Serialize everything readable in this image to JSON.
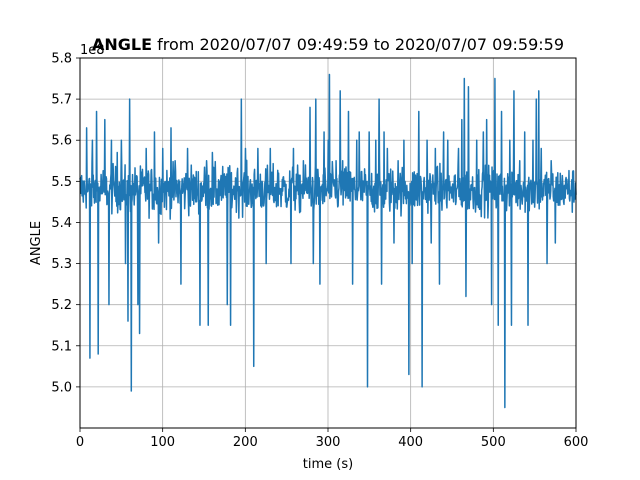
{
  "chart_data": {
    "type": "line",
    "title_bold": "ANGLE",
    "title_rest": " from 2020/07/07 09:49:59 to 2020/07/07 09:59:59",
    "xlabel": "time (s)",
    "ylabel": "ANGLE",
    "y_offset_label": "1e8",
    "xlim": [
      0,
      600
    ],
    "ylim": [
      4.9,
      5.8
    ],
    "x_ticks": [
      0,
      100,
      200,
      300,
      400,
      500,
      600
    ],
    "x_tick_labels": [
      "0",
      "100",
      "200",
      "300",
      "400",
      "500",
      "600"
    ],
    "y_ticks": [
      5.0,
      5.1,
      5.2,
      5.3,
      5.4,
      5.5,
      5.6,
      5.7,
      5.8
    ],
    "y_tick_labels": [
      "5.0",
      "5.1",
      "5.2",
      "5.3",
      "5.4",
      "5.5",
      "5.6",
      "5.7",
      "5.8"
    ],
    "grid": true,
    "series": [
      {
        "color": "#1f77b4",
        "baseline": 5.48,
        "noise": 0.055,
        "n_points": 1200,
        "spikes": [
          [
            8,
            5.63
          ],
          [
            12,
            5.07
          ],
          [
            15,
            5.6
          ],
          [
            20,
            5.67
          ],
          [
            22,
            5.08
          ],
          [
            30,
            5.65
          ],
          [
            35,
            5.2
          ],
          [
            38,
            5.6
          ],
          [
            45,
            5.57
          ],
          [
            50,
            5.6
          ],
          [
            55,
            5.3
          ],
          [
            58,
            5.16
          ],
          [
            60,
            5.7
          ],
          [
            62,
            4.99
          ],
          [
            70,
            5.2
          ],
          [
            72,
            5.13
          ],
          [
            80,
            5.58
          ],
          [
            90,
            5.62
          ],
          [
            95,
            5.35
          ],
          [
            100,
            5.58
          ],
          [
            110,
            5.63
          ],
          [
            115,
            5.55
          ],
          [
            122,
            5.25
          ],
          [
            130,
            5.58
          ],
          [
            140,
            5.45
          ],
          [
            145,
            5.15
          ],
          [
            150,
            5.5
          ],
          [
            153,
            5.55
          ],
          [
            155,
            5.15
          ],
          [
            160,
            5.57
          ],
          [
            170,
            5.5
          ],
          [
            178,
            5.2
          ],
          [
            182,
            5.15
          ],
          [
            190,
            5.52
          ],
          [
            195,
            5.7
          ],
          [
            200,
            5.58
          ],
          [
            210,
            5.05
          ],
          [
            215,
            5.58
          ],
          [
            220,
            5.5
          ],
          [
            225,
            5.3
          ],
          [
            230,
            5.58
          ],
          [
            240,
            5.52
          ],
          [
            255,
            5.3
          ],
          [
            258,
            5.58
          ],
          [
            265,
            5.45
          ],
          [
            270,
            5.55
          ],
          [
            278,
            5.68
          ],
          [
            282,
            5.3
          ],
          [
            285,
            5.7
          ],
          [
            290,
            5.25
          ],
          [
            295,
            5.62
          ],
          [
            300,
            5.6
          ],
          [
            302,
            5.76
          ],
          [
            310,
            5.55
          ],
          [
            315,
            5.72
          ],
          [
            318,
            5.55
          ],
          [
            325,
            5.67
          ],
          [
            330,
            5.25
          ],
          [
            335,
            5.6
          ],
          [
            338,
            5.62
          ],
          [
            348,
            5.0
          ],
          [
            350,
            5.62
          ],
          [
            358,
            5.6
          ],
          [
            362,
            5.7
          ],
          [
            365,
            5.25
          ],
          [
            368,
            5.62
          ],
          [
            372,
            5.58
          ],
          [
            380,
            5.35
          ],
          [
            385,
            5.55
          ],
          [
            392,
            5.6
          ],
          [
            398,
            5.03
          ],
          [
            402,
            5.3
          ],
          [
            410,
            5.67
          ],
          [
            414,
            5.0
          ],
          [
            420,
            5.6
          ],
          [
            425,
            5.35
          ],
          [
            430,
            5.58
          ],
          [
            435,
            5.25
          ],
          [
            440,
            5.62
          ],
          [
            445,
            5.6
          ],
          [
            452,
            5.45
          ],
          [
            458,
            5.58
          ],
          [
            462,
            5.65
          ],
          [
            465,
            5.75
          ],
          [
            467,
            5.22
          ],
          [
            470,
            5.73
          ],
          [
            480,
            5.6
          ],
          [
            488,
            5.62
          ],
          [
            492,
            5.65
          ],
          [
            498,
            5.2
          ],
          [
            502,
            5.75
          ],
          [
            506,
            5.15
          ],
          [
            510,
            5.67
          ],
          [
            514,
            4.95
          ],
          [
            520,
            5.6
          ],
          [
            522,
            5.15
          ],
          [
            525,
            5.72
          ],
          [
            532,
            5.55
          ],
          [
            538,
            5.62
          ],
          [
            542,
            5.15
          ],
          [
            548,
            5.6
          ],
          [
            552,
            5.7
          ],
          [
            555,
            5.72
          ],
          [
            558,
            5.58
          ],
          [
            565,
            5.3
          ],
          [
            570,
            5.55
          ],
          [
            575,
            5.35
          ]
        ]
      }
    ]
  }
}
